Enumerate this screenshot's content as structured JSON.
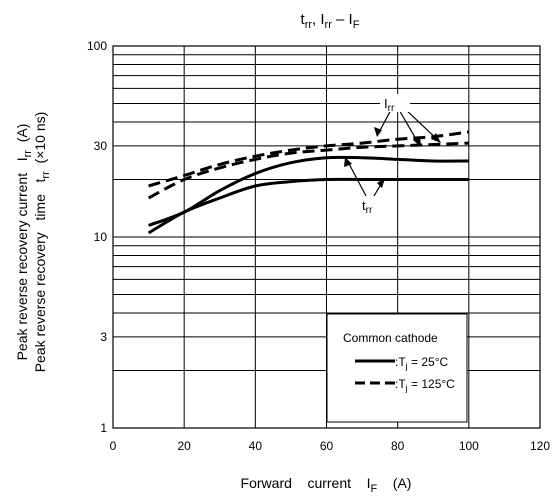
{
  "chart_data": {
    "type": "line",
    "title": {
      "main": "t",
      "sub1": "rr",
      "sep": ", I",
      "sub2": "rr",
      "dash": " – I",
      "sub3": "F"
    },
    "xlabel": {
      "prefix": "Forward    current    I",
      "sub": "F",
      "unit": "    (A)"
    },
    "ylabel_outer": {
      "prefix": "Peak reverse recovery current   I",
      "sub": "rr",
      "unit": "  (A)"
    },
    "ylabel_inner": {
      "prefix": "Peak reverse recovery   time   t",
      "sub": "rr",
      "unit": "  (×10 ns)"
    },
    "xlim": [
      0,
      120
    ],
    "ylim": [
      1,
      100
    ],
    "yscale": "log",
    "x_ticks": [
      "0",
      "20",
      "40",
      "60",
      "80",
      "100",
      "120"
    ],
    "y_ticks": [
      {
        "value": 1,
        "label": "1"
      },
      {
        "value": 3,
        "label": "3"
      },
      {
        "value": 10,
        "label": "10"
      },
      {
        "value": 30,
        "label": "30"
      },
      {
        "value": 100,
        "label": "100"
      }
    ],
    "grid": true,
    "series": [
      {
        "curve": "Irr",
        "tj": "25",
        "style": "solid",
        "x": [
          10,
          20,
          30,
          40,
          50,
          60,
          70,
          80,
          90,
          100
        ],
        "y": [
          11.5,
          13.5,
          17.5,
          21.5,
          24.5,
          26.0,
          26.0,
          25.5,
          25.0,
          25.0
        ]
      },
      {
        "curve": "trr",
        "tj": "25",
        "style": "solid",
        "x": [
          10,
          20,
          30,
          40,
          50,
          60,
          70,
          80,
          90,
          100
        ],
        "y": [
          10.5,
          13.5,
          16.0,
          18.5,
          19.5,
          20.0,
          20.0,
          20.0,
          20.0,
          20.0
        ]
      },
      {
        "curve": "Irr",
        "tj": "125",
        "style": "dashed",
        "x": [
          10,
          20,
          30,
          40,
          50,
          60,
          70,
          80,
          90,
          100
        ],
        "y": [
          18.5,
          21.0,
          24.0,
          26.5,
          28.5,
          30.0,
          31.0,
          32.5,
          33.5,
          35.5
        ]
      },
      {
        "curve": "trr",
        "tj": "125",
        "style": "dashed",
        "x": [
          10,
          20,
          30,
          40,
          50,
          60,
          70,
          80,
          90,
          100
        ],
        "y": [
          16.0,
          20.0,
          23.0,
          25.5,
          27.5,
          28.5,
          29.5,
          30.0,
          30.5,
          31.0
        ]
      }
    ],
    "annotations": {
      "irr_label": {
        "main": "I",
        "sub": "rr"
      },
      "trr_label": {
        "main": "t",
        "sub": "rr"
      }
    },
    "legend": {
      "placement": "bottom-right",
      "title": "Common cathode",
      "entries": [
        {
          "style": "solid",
          "prefix": ":T",
          "sub": "j",
          "value": " = 25°C"
        },
        {
          "style": "dashed",
          "prefix": ":T",
          "sub": "j",
          "value": " = 125°C"
        }
      ]
    }
  }
}
